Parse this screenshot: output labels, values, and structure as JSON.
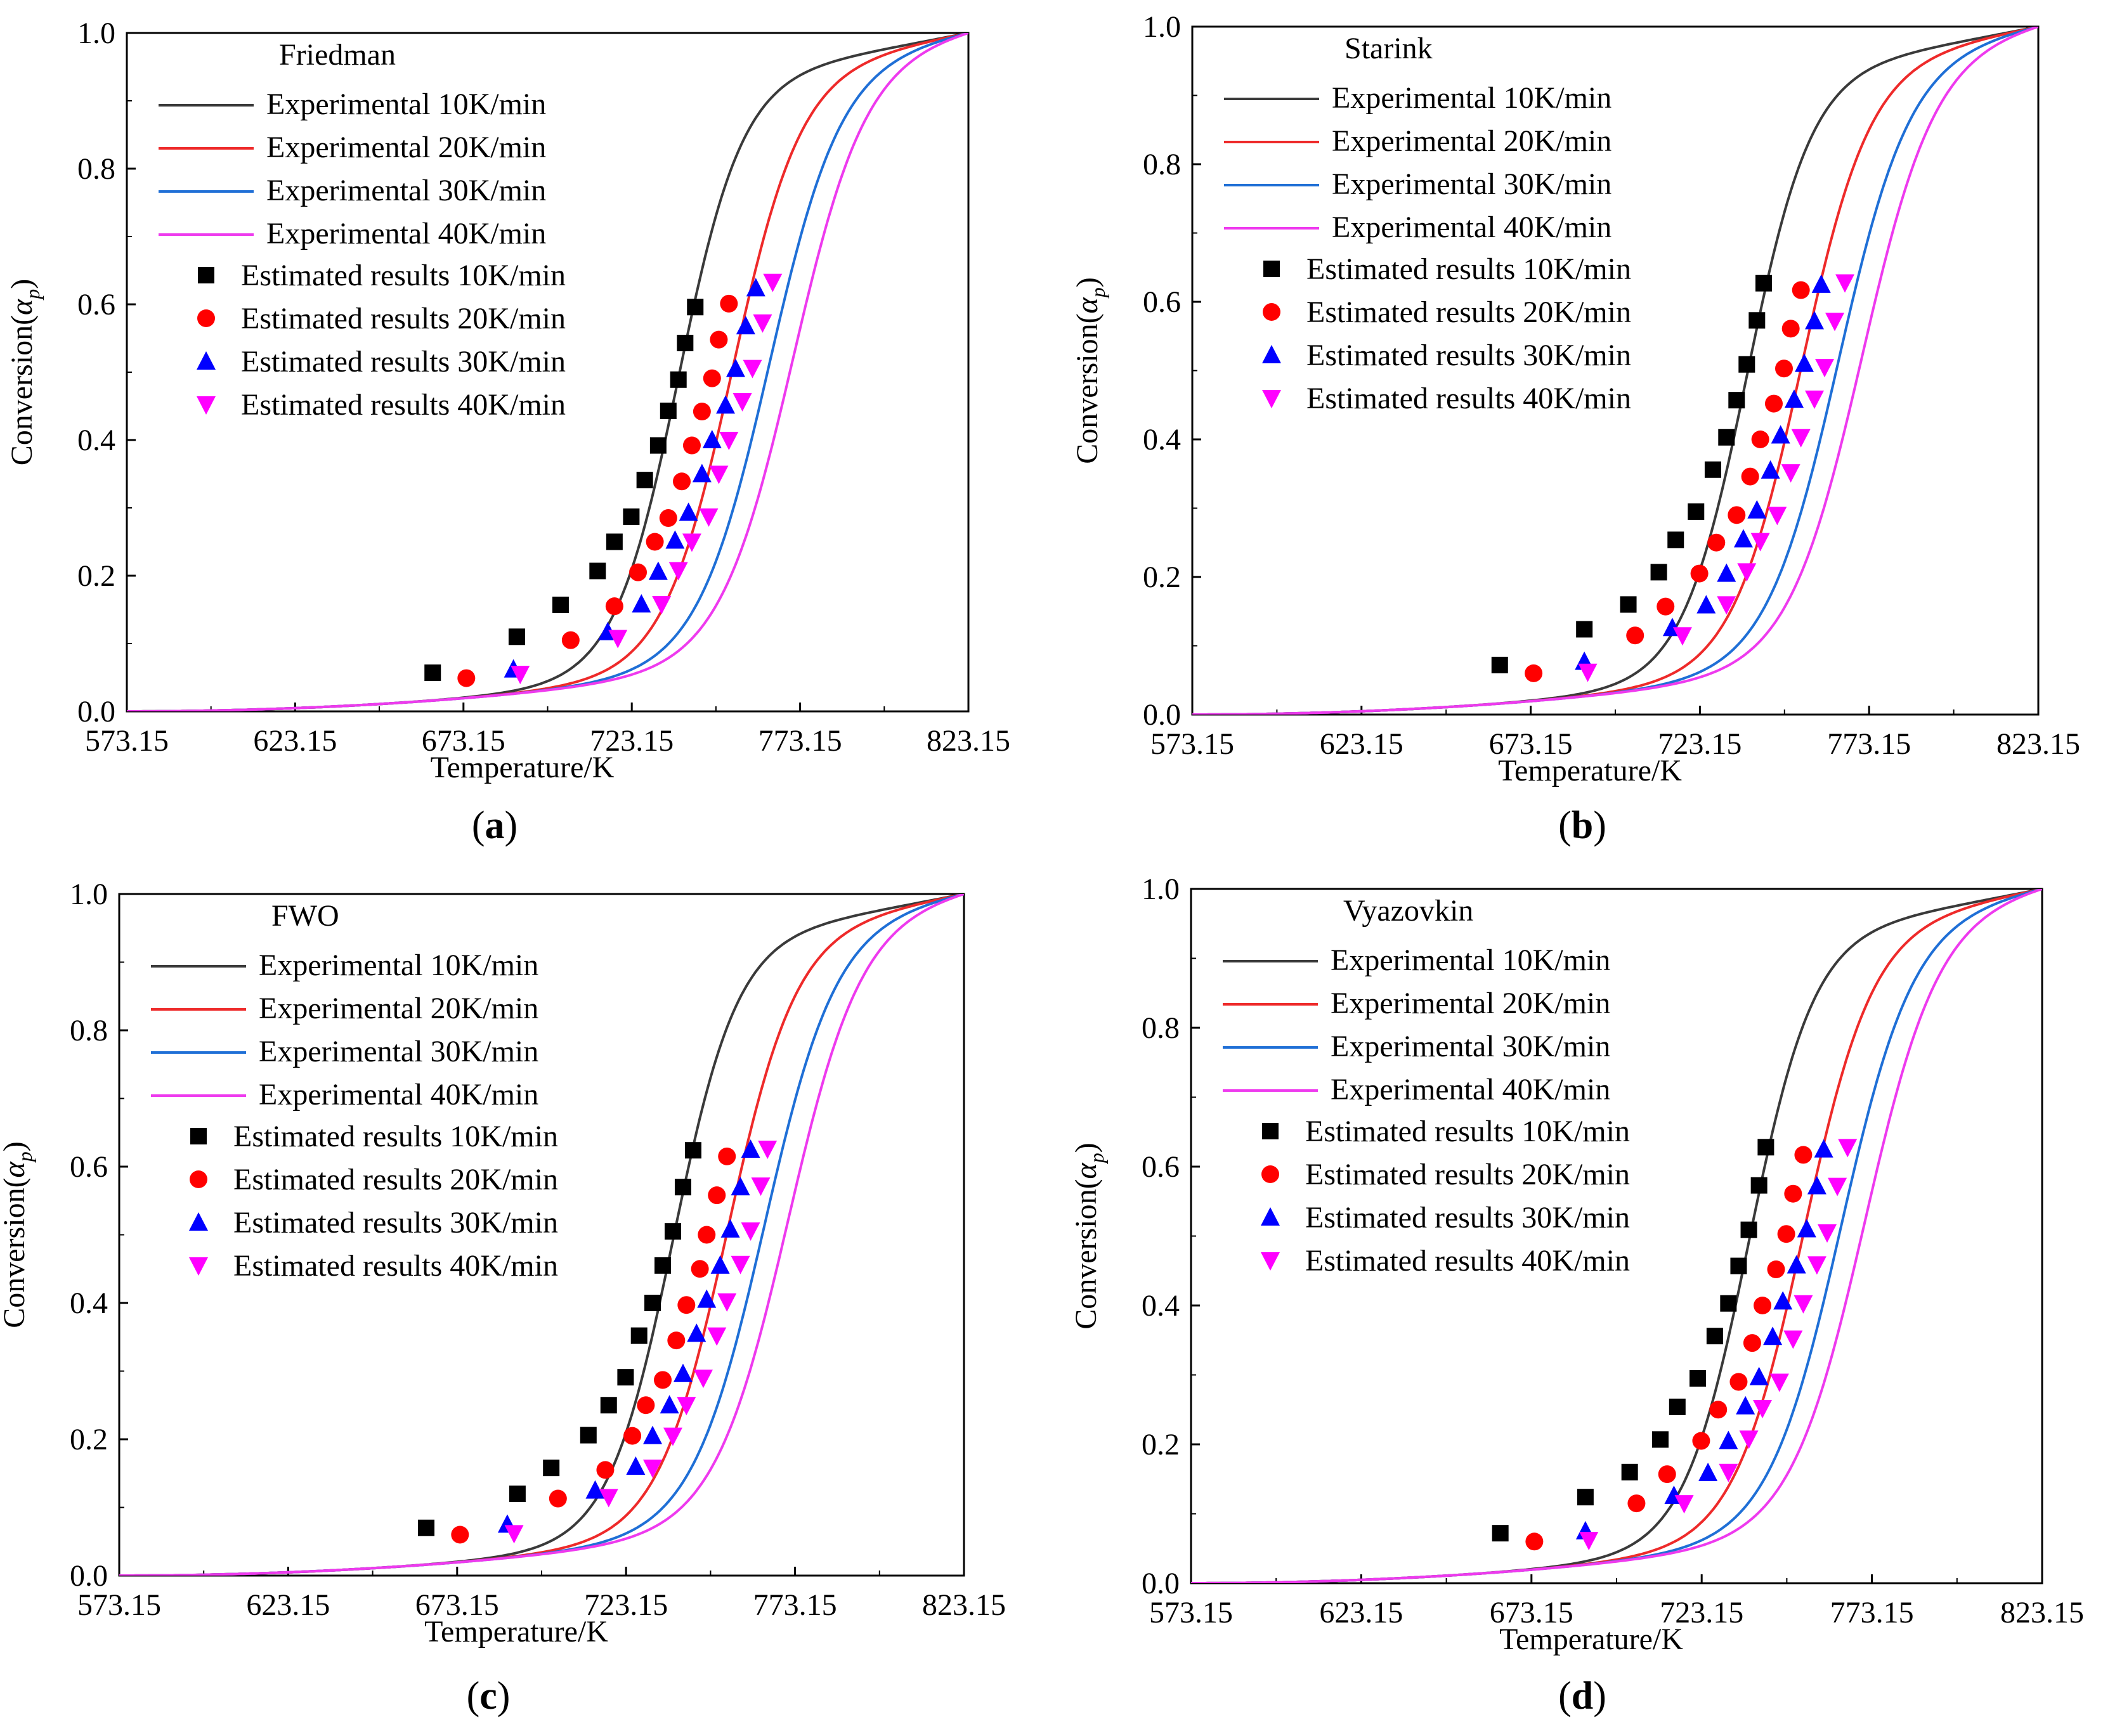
{
  "figure": {
    "x_range": [
      573.15,
      823.15
    ],
    "y_range": [
      0,
      1
    ],
    "xlabel": "Temperature/K",
    "ylabel_prefix": "Conversion(",
    "ylabel_symbol": "α",
    "ylabel_sub": "p",
    "ylabel_suffix": ")",
    "x_ticks": [
      "573.15",
      "623.15",
      "673.15",
      "723.15",
      "773.15",
      "823.15"
    ],
    "y_ticks": [
      "0.0",
      "0.2",
      "0.4",
      "0.6",
      "0.8",
      "1.0"
    ],
    "series_colors": [
      "#3a3a3a",
      "#ee2a2a",
      "#1f6fd6",
      "#ee3aee"
    ],
    "marker_colors": [
      "#000000",
      "#ff0000",
      "#0000ff",
      "#ff00ff"
    ],
    "marker_shapes": [
      "square",
      "circle",
      "triangle-up",
      "triangle-down"
    ],
    "legend_lines": [
      "Experimental 10K/min",
      "Experimental 20K/min",
      "Experimental 30K/min",
      "Experimental 40K/min"
    ],
    "legend_markers": [
      "Estimated results 10K/min",
      "Estimated results 20K/min",
      "Estimated results 30K/min",
      "Estimated results 40K/min"
    ]
  },
  "chart_data": [
    {
      "type": "line+scatter",
      "panel_label": "a",
      "method": "Friedman",
      "xlabel": "Temperature/K",
      "ylabel": "Conversion(αp)",
      "xlim": [
        573.15,
        823.15
      ],
      "ylim": [
        0,
        1
      ],
      "experimental_midpoints_K": [
        737,
        753,
        764,
        771
      ],
      "estimated": [
        {
          "name": "Estimated results 10K/min",
          "x": [
            664,
            689,
            702,
            713,
            718,
            723,
            727,
            731,
            734,
            737,
            739,
            742
          ],
          "y": [
            0.057,
            0.11,
            0.157,
            0.207,
            0.25,
            0.287,
            0.341,
            0.392,
            0.443,
            0.489,
            0.543,
            0.596
          ]
        },
        {
          "name": "Estimated results 20K/min",
          "x": [
            674,
            705,
            718,
            725,
            730,
            734,
            738,
            741,
            744,
            747,
            749,
            752
          ],
          "y": [
            0.049,
            0.105,
            0.155,
            0.205,
            0.25,
            0.285,
            0.339,
            0.392,
            0.442,
            0.491,
            0.548,
            0.601
          ]
        },
        {
          "name": "Estimated results 30K/min",
          "x": [
            688,
            716,
            726,
            731,
            736,
            740,
            744,
            747,
            751,
            754,
            757,
            760
          ],
          "y": [
            0.062,
            0.117,
            0.158,
            0.206,
            0.252,
            0.293,
            0.35,
            0.4,
            0.451,
            0.505,
            0.568,
            0.624
          ]
        },
        {
          "name": "Estimated results 40K/min",
          "x": [
            690,
            719,
            732,
            737,
            741,
            746,
            749,
            752,
            756,
            759,
            762,
            765
          ],
          "y": [
            0.055,
            0.108,
            0.158,
            0.208,
            0.25,
            0.287,
            0.35,
            0.4,
            0.457,
            0.506,
            0.573,
            0.633
          ]
        }
      ]
    },
    {
      "type": "line+scatter",
      "panel_label": "b",
      "method": "Starink",
      "xlabel": "Temperature/K",
      "ylabel": "Conversion(αp)",
      "xlim": [
        573.15,
        823.15
      ],
      "ylim": [
        0,
        1
      ],
      "experimental_midpoints_K": [
        737,
        753,
        764,
        771
      ],
      "estimated": [
        {
          "name": "Estimated results 10K/min",
          "x": [
            664,
            689,
            702,
            711,
            716,
            722,
            727,
            731,
            734,
            737,
            740,
            742
          ],
          "y": [
            0.072,
            0.124,
            0.16,
            0.207,
            0.254,
            0.295,
            0.356,
            0.403,
            0.457,
            0.509,
            0.573,
            0.627
          ]
        },
        {
          "name": "Estimated results 20K/min",
          "x": [
            674,
            704,
            713,
            723,
            728,
            734,
            738,
            741,
            745,
            748,
            750,
            753
          ],
          "y": [
            0.06,
            0.115,
            0.157,
            0.205,
            0.25,
            0.29,
            0.346,
            0.4,
            0.452,
            0.503,
            0.561,
            0.617
          ]
        },
        {
          "name": "Estimated results 30K/min",
          "x": [
            689,
            715,
            725,
            731,
            736,
            740,
            744,
            747,
            751,
            754,
            757,
            759
          ],
          "y": [
            0.077,
            0.126,
            0.159,
            0.205,
            0.255,
            0.297,
            0.355,
            0.406,
            0.458,
            0.51,
            0.572,
            0.625
          ]
        },
        {
          "name": "Estimated results 40K/min",
          "x": [
            690,
            718,
            731,
            737,
            741,
            746,
            750,
            753,
            757,
            760,
            763,
            766
          ],
          "y": [
            0.062,
            0.115,
            0.16,
            0.208,
            0.252,
            0.29,
            0.352,
            0.403,
            0.459,
            0.505,
            0.572,
            0.628
          ]
        }
      ]
    },
    {
      "type": "line+scatter",
      "panel_label": "c",
      "method": "FWO",
      "xlabel": "Temperature/K",
      "ylabel": "Conversion(αp)",
      "xlim": [
        573.15,
        823.15
      ],
      "ylim": [
        0,
        1
      ],
      "experimental_midpoints_K": [
        737,
        753,
        764,
        771
      ],
      "estimated": [
        {
          "name": "Estimated results 10K/min",
          "x": [
            664,
            691,
            701,
            712,
            718,
            723,
            727,
            731,
            734,
            737,
            740,
            743
          ],
          "y": [
            0.07,
            0.12,
            0.158,
            0.206,
            0.25,
            0.291,
            0.352,
            0.4,
            0.455,
            0.505,
            0.57,
            0.624
          ]
        },
        {
          "name": "Estimated results 20K/min",
          "x": [
            674,
            703,
            717,
            725,
            729,
            734,
            738,
            741,
            745,
            747,
            750,
            753
          ],
          "y": [
            0.06,
            0.113,
            0.155,
            0.205,
            0.25,
            0.287,
            0.345,
            0.397,
            0.45,
            0.5,
            0.558,
            0.615
          ]
        },
        {
          "name": "Estimated results 30K/min",
          "x": [
            688,
            714,
            726,
            731,
            736,
            740,
            744,
            747,
            751,
            754,
            757,
            760
          ],
          "y": [
            0.075,
            0.125,
            0.16,
            0.205,
            0.25,
            0.296,
            0.355,
            0.405,
            0.455,
            0.508,
            0.57,
            0.625
          ]
        },
        {
          "name": "Estimated results 40K/min",
          "x": [
            690,
            718,
            731,
            737,
            741,
            746,
            750,
            753,
            757,
            760,
            763,
            765
          ],
          "y": [
            0.062,
            0.115,
            0.158,
            0.205,
            0.25,
            0.29,
            0.352,
            0.402,
            0.457,
            0.506,
            0.572,
            0.626
          ]
        }
      ]
    },
    {
      "type": "line+scatter",
      "panel_label": "d",
      "method": "Vyazovkin",
      "xlabel": "Temperature/K",
      "ylabel": "Conversion(αp)",
      "xlim": [
        573.15,
        823.15
      ],
      "ylim": [
        0,
        1
      ],
      "experimental_midpoints_K": [
        737,
        753,
        764,
        771
      ],
      "estimated": [
        {
          "name": "Estimated results 10K/min",
          "x": [
            664,
            689,
            702,
            711,
            716,
            722,
            727,
            731,
            734,
            737,
            740,
            742
          ],
          "y": [
            0.072,
            0.124,
            0.16,
            0.207,
            0.254,
            0.295,
            0.356,
            0.403,
            0.457,
            0.509,
            0.573,
            0.628
          ]
        },
        {
          "name": "Estimated results 20K/min",
          "x": [
            674,
            704,
            713,
            723,
            728,
            734,
            738,
            741,
            745,
            748,
            750,
            753
          ],
          "y": [
            0.06,
            0.115,
            0.157,
            0.205,
            0.25,
            0.29,
            0.346,
            0.4,
            0.452,
            0.503,
            0.561,
            0.617
          ]
        },
        {
          "name": "Estimated results 30K/min",
          "x": [
            689,
            715,
            725,
            731,
            736,
            740,
            744,
            747,
            751,
            754,
            757,
            759
          ],
          "y": [
            0.075,
            0.126,
            0.159,
            0.205,
            0.255,
            0.297,
            0.355,
            0.406,
            0.458,
            0.51,
            0.572,
            0.625
          ]
        },
        {
          "name": "Estimated results 40K/min",
          "x": [
            690,
            718,
            731,
            737,
            741,
            746,
            750,
            753,
            757,
            760,
            763,
            766
          ],
          "y": [
            0.062,
            0.115,
            0.16,
            0.208,
            0.252,
            0.29,
            0.352,
            0.403,
            0.459,
            0.505,
            0.572,
            0.628
          ]
        }
      ]
    }
  ]
}
